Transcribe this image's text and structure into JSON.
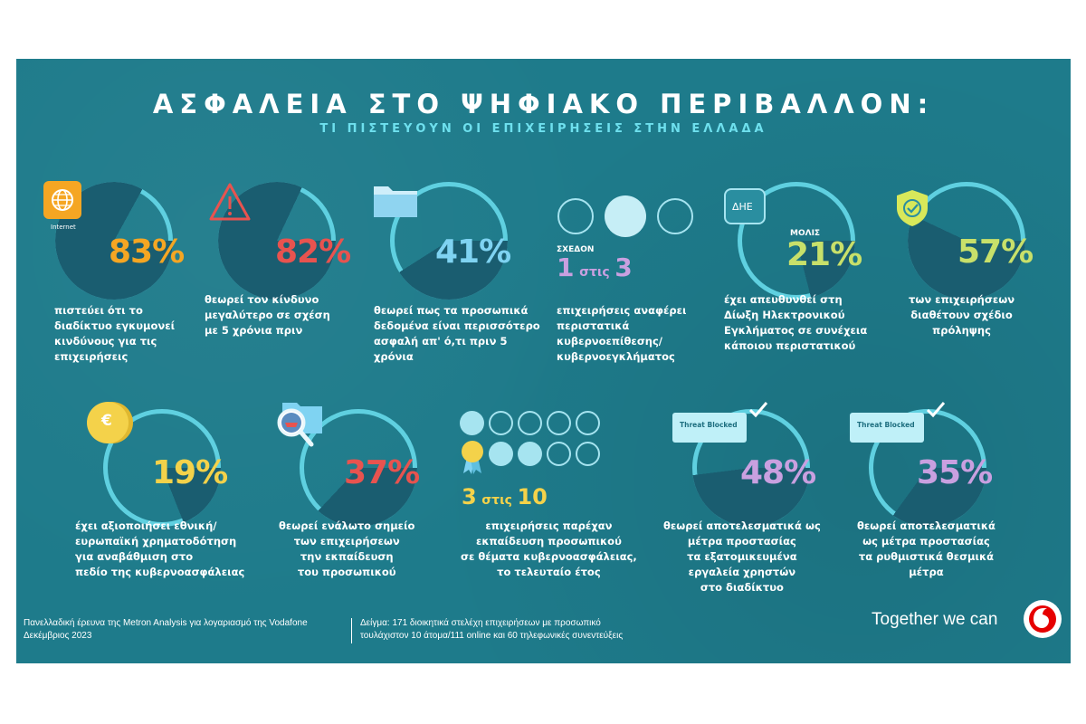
{
  "header": {
    "title": "ΑΣΦΑΛΕΙΑ ΣΤΟ ΨΗΦΙΑΚΟ ΠΕΡΙΒΑΛΛΟΝ:",
    "subtitle": "ΤΙ ΠΙΣΤΕΥΟΥΝ ΟΙ ΕΠΙΧΕΙΡΗΣΕΙΣ ΣΤΗΝ ΕΛΛΑΔΑ"
  },
  "colors": {
    "background": "#1e7b8b",
    "ring": "#5fd0e0",
    "pie": "#1a5d70",
    "orange": "#f5a623",
    "red": "#e8534f",
    "blue": "#7fd3f2",
    "lime": "#c8e06a",
    "purple": "#c9a0e0",
    "yellow": "#f4d24a"
  },
  "stats": [
    {
      "value": 83,
      "label": "83%",
      "caption": [
        "πιστεύει ότι το",
        "διαδίκτυο εγκυμονεί",
        "κινδύνους για τις",
        "επιχειρήσεις"
      ],
      "icon": "globe-icon",
      "icon_label": "Internet"
    },
    {
      "value": 82,
      "label": "82%",
      "caption": [
        "θεωρεί τον κίνδυνο",
        "μεγαλύτερο σε σχέση",
        "με 5 χρόνια πριν"
      ],
      "icon": "warning-icon"
    },
    {
      "value": 41,
      "label": "41%",
      "caption": [
        "θεωρεί πως τα προσωπικά",
        "δεδομένα είναι περισσότερο",
        "ασφαλή απ' ό,τι πριν 5",
        "χρόνια"
      ],
      "icon": "folder-icon"
    },
    {
      "prefix": "ΣΧΕΔΟΝ",
      "ratio_a": "1",
      "ratio_word": "στις",
      "ratio_b": "3",
      "caption": [
        "επιχειρήσεις αναφέρει",
        "περιστατικά",
        "κυβερνοεπίθεσης/",
        "κυβερνοεγκλήματος"
      ]
    },
    {
      "value": 21,
      "label": "21%",
      "prefix": "ΜΟΛΙΣ",
      "caption": [
        "έχει απευθυνθεί στη",
        "Δίωξη Ηλεκτρονικού",
        "Εγκλήματος σε συνέχεια",
        "κάποιου περιστατικού"
      ],
      "icon": "badge-icon",
      "icon_label": "ΔΗΕ"
    },
    {
      "value": 57,
      "label": "57%",
      "caption": [
        "των επιχειρήσεων",
        "διαθέτουν σχέδιο",
        "πρόληψης"
      ],
      "icon": "shield-check-icon"
    },
    {
      "value": 19,
      "label": "19%",
      "caption": [
        "έχει αξιοποιήσει εθνική/",
        "ευρωπαϊκή χρηματοδότηση",
        "για αναβάθμιση στο",
        "πεδίο της κυβερνοασφάλειας"
      ],
      "icon": "coin-icon",
      "icon_label": "€"
    },
    {
      "value": 37,
      "label": "37%",
      "caption": [
        "θεωρεί ενάλωτο σημείο",
        "των επιχειρήσεων",
        "την εκπαίδευση",
        "του προσωπικού"
      ],
      "icon": "magnifier-icon"
    },
    {
      "ratio_a": "3",
      "ratio_word": "στις",
      "ratio_b": "10",
      "caption": [
        "επιχειρήσεις παρέχαν",
        "εκπαίδευση προσωπικού",
        "σε θέματα κυβερνοασφάλειας,",
        "το τελευταίο έτος"
      ]
    },
    {
      "value": 48,
      "label": "48%",
      "caption": [
        "θεωρεί αποτελεσματικά ως",
        "μέτρα προστασίας",
        "τα εξατομικευμένα",
        "εργαλεία χρηστών",
        "στο διαδίκτυο"
      ],
      "icon": "threat-blocked-icon",
      "icon_label": "Threat Blocked"
    },
    {
      "value": 35,
      "label": "35%",
      "caption": [
        "θεωρεί αποτελεσματικά",
        "ως μέτρα προστασίας",
        "τα ρυθμιστικά θεσμικά",
        "μέτρα"
      ],
      "icon": "threat-blocked-icon",
      "icon_label": "Threat Blocked"
    }
  ],
  "footer": {
    "source": [
      "Πανελλαδική έρευνα της Metron Analysis για λογαριασμό της Vodafone",
      "Δεκέμβριος 2023"
    ],
    "sample": [
      "Δείγμα: 171 διοικητικά στελέχη επιχειρήσεων με προσωπικό",
      "τουλάχιστον 10 άτομα/111 online και 60 τηλεφωνικές συνεντεύξεις"
    ],
    "slogan": "Together we can"
  }
}
